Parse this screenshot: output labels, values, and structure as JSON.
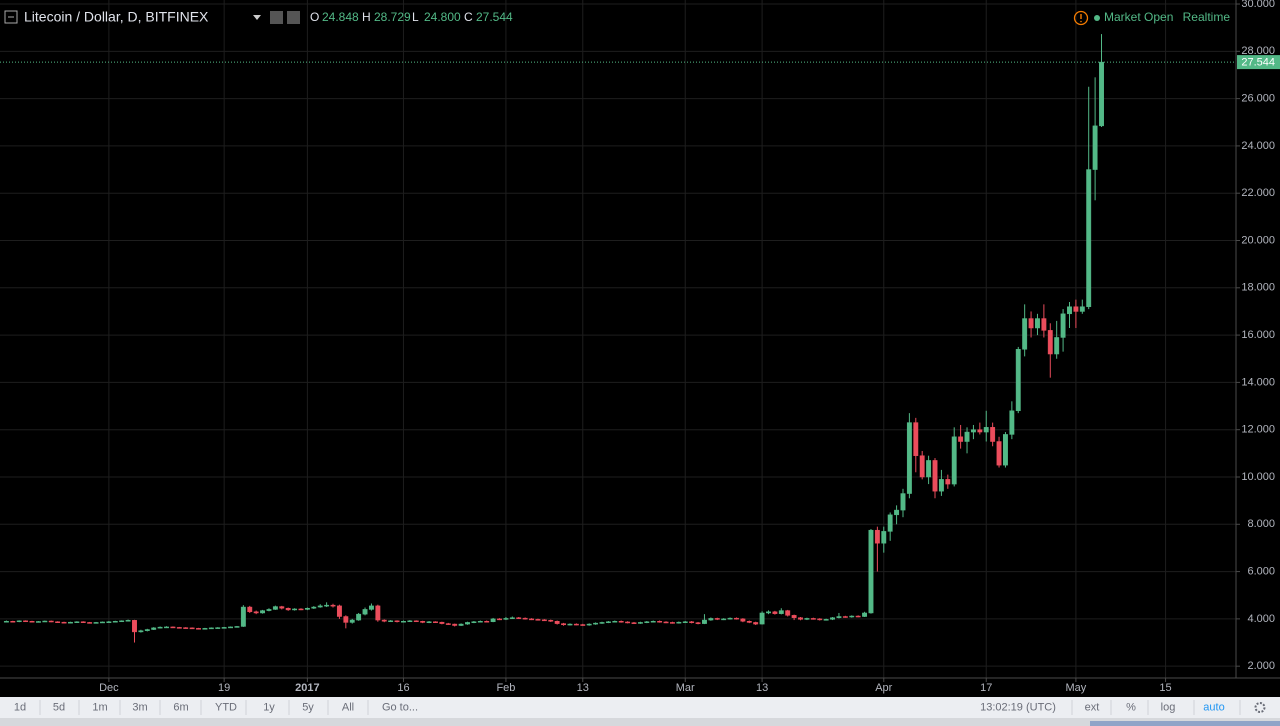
{
  "chart_data": {
    "type": "candlestick",
    "title": "Litecoin / Dollar, D, BITFINEX",
    "ohlc_names": [
      "O",
      "H",
      "L",
      "C"
    ],
    "last_value_labels": [
      "24.848",
      "28.729",
      "24.800",
      "27.544"
    ],
    "status": "Market Open",
    "feed": "Realtime",
    "up_color": "#53b987",
    "down_color": "#eb4d5c",
    "grid": true,
    "xlim": [
      "2016-11-14",
      "2017-05-26"
    ],
    "xticks": [
      {
        "value": "2016-12-01",
        "label": "Dec"
      },
      {
        "value": "2016-12-19",
        "label": "19"
      },
      {
        "value": "2017-01-01",
        "label": "2017"
      },
      {
        "value": "2017-01-16",
        "label": "16"
      },
      {
        "value": "2017-02-01",
        "label": "Feb"
      },
      {
        "value": "2017-02-13",
        "label": "13"
      },
      {
        "value": "2017-03-01",
        "label": "Mar"
      },
      {
        "value": "2017-03-13",
        "label": "13"
      },
      {
        "value": "2017-04-01",
        "label": "Apr"
      },
      {
        "value": "2017-04-17",
        "label": "17"
      },
      {
        "value": "2017-05-01",
        "label": "May"
      },
      {
        "value": "2017-05-15",
        "label": "15"
      }
    ],
    "ylim": [
      1.5,
      30.17
    ],
    "yticks": [
      {
        "value": 2,
        "label": "2.000"
      },
      {
        "value": 4,
        "label": "4.000"
      },
      {
        "value": 6,
        "label": "6.000"
      },
      {
        "value": 8,
        "label": "8.000"
      },
      {
        "value": 10,
        "label": "10.000"
      },
      {
        "value": 12,
        "label": "12.000"
      },
      {
        "value": 14,
        "label": "14.000"
      },
      {
        "value": 16,
        "label": "16.000"
      },
      {
        "value": 18,
        "label": "18.000"
      },
      {
        "value": 20,
        "label": "20.000"
      },
      {
        "value": 22,
        "label": "22.000"
      },
      {
        "value": 24,
        "label": "24.000"
      },
      {
        "value": 26,
        "label": "26.000"
      },
      {
        "value": 28,
        "label": "28.000"
      },
      {
        "value": 30,
        "label": "30.000"
      }
    ],
    "x": [
      "2016-11-15",
      "2016-11-16",
      "2016-11-17",
      "2016-11-18",
      "2016-11-19",
      "2016-11-20",
      "2016-11-21",
      "2016-11-22",
      "2016-11-23",
      "2016-11-24",
      "2016-11-25",
      "2016-11-26",
      "2016-11-27",
      "2016-11-28",
      "2016-11-29",
      "2016-11-30",
      "2016-12-01",
      "2016-12-02",
      "2016-12-03",
      "2016-12-04",
      "2016-12-05",
      "2016-12-06",
      "2016-12-07",
      "2016-12-08",
      "2016-12-09",
      "2016-12-10",
      "2016-12-11",
      "2016-12-12",
      "2016-12-13",
      "2016-12-14",
      "2016-12-15",
      "2016-12-16",
      "2016-12-17",
      "2016-12-18",
      "2016-12-19",
      "2016-12-20",
      "2016-12-21",
      "2016-12-22",
      "2016-12-23",
      "2016-12-24",
      "2016-12-25",
      "2016-12-26",
      "2016-12-27",
      "2016-12-28",
      "2016-12-29",
      "2016-12-30",
      "2016-12-31",
      "2017-01-01",
      "2017-01-02",
      "2017-01-03",
      "2017-01-04",
      "2017-01-05",
      "2017-01-06",
      "2017-01-07",
      "2017-01-08",
      "2017-01-09",
      "2017-01-10",
      "2017-01-11",
      "2017-01-12",
      "2017-01-13",
      "2017-01-14",
      "2017-01-15",
      "2017-01-16",
      "2017-01-17",
      "2017-01-18",
      "2017-01-19",
      "2017-01-20",
      "2017-01-21",
      "2017-01-22",
      "2017-01-23",
      "2017-01-24",
      "2017-01-25",
      "2017-01-26",
      "2017-01-27",
      "2017-01-28",
      "2017-01-29",
      "2017-01-30",
      "2017-01-31",
      "2017-02-01",
      "2017-02-02",
      "2017-02-03",
      "2017-02-04",
      "2017-02-05",
      "2017-02-06",
      "2017-02-07",
      "2017-02-08",
      "2017-02-09",
      "2017-02-10",
      "2017-02-11",
      "2017-02-12",
      "2017-02-13",
      "2017-02-14",
      "2017-02-15",
      "2017-02-16",
      "2017-02-17",
      "2017-02-18",
      "2017-02-19",
      "2017-02-20",
      "2017-02-21",
      "2017-02-22",
      "2017-02-23",
      "2017-02-24",
      "2017-02-25",
      "2017-02-26",
      "2017-02-27",
      "2017-02-28",
      "2017-03-01",
      "2017-03-02",
      "2017-03-03",
      "2017-03-04",
      "2017-03-05",
      "2017-03-06",
      "2017-03-07",
      "2017-03-08",
      "2017-03-09",
      "2017-03-10",
      "2017-03-11",
      "2017-03-12",
      "2017-03-13",
      "2017-03-14",
      "2017-03-15",
      "2017-03-16",
      "2017-03-17",
      "2017-03-18",
      "2017-03-19",
      "2017-03-20",
      "2017-03-21",
      "2017-03-22",
      "2017-03-23",
      "2017-03-24",
      "2017-03-25",
      "2017-03-26",
      "2017-03-27",
      "2017-03-28",
      "2017-03-29",
      "2017-03-30",
      "2017-03-31",
      "2017-04-01",
      "2017-04-02",
      "2017-04-03",
      "2017-04-04",
      "2017-04-05",
      "2017-04-06",
      "2017-04-07",
      "2017-04-08",
      "2017-04-09",
      "2017-04-10",
      "2017-04-11",
      "2017-04-12",
      "2017-04-13",
      "2017-04-14",
      "2017-04-15",
      "2017-04-16",
      "2017-04-17",
      "2017-04-18",
      "2017-04-19",
      "2017-04-20",
      "2017-04-21",
      "2017-04-22",
      "2017-04-23",
      "2017-04-24",
      "2017-04-25",
      "2017-04-26",
      "2017-04-27",
      "2017-04-28",
      "2017-04-29",
      "2017-04-30",
      "2017-05-01",
      "2017-05-02",
      "2017-05-03",
      "2017-05-04",
      "2017-05-05"
    ],
    "ohlc": [
      [
        3.88,
        3.93,
        3.86,
        3.9
      ],
      [
        3.9,
        3.92,
        3.86,
        3.88
      ],
      [
        3.88,
        3.94,
        3.86,
        3.92
      ],
      [
        3.92,
        3.94,
        3.88,
        3.9
      ],
      [
        3.9,
        3.92,
        3.85,
        3.87
      ],
      [
        3.87,
        3.91,
        3.85,
        3.89
      ],
      [
        3.89,
        3.93,
        3.87,
        3.91
      ],
      [
        3.91,
        3.93,
        3.86,
        3.88
      ],
      [
        3.88,
        3.9,
        3.84,
        3.86
      ],
      [
        3.86,
        3.88,
        3.82,
        3.84
      ],
      [
        3.84,
        3.88,
        3.82,
        3.86
      ],
      [
        3.86,
        3.9,
        3.84,
        3.88
      ],
      [
        3.88,
        3.9,
        3.83,
        3.85
      ],
      [
        3.85,
        3.87,
        3.81,
        3.83
      ],
      [
        3.83,
        3.87,
        3.81,
        3.85
      ],
      [
        3.85,
        3.89,
        3.83,
        3.87
      ],
      [
        3.87,
        3.91,
        3.85,
        3.88
      ],
      [
        3.88,
        3.92,
        3.86,
        3.9
      ],
      [
        3.9,
        3.94,
        3.88,
        3.92
      ],
      [
        3.92,
        3.97,
        3.9,
        3.94
      ],
      [
        3.94,
        3.96,
        3.0,
        3.45
      ],
      [
        3.45,
        3.54,
        3.42,
        3.5
      ],
      [
        3.5,
        3.58,
        3.47,
        3.55
      ],
      [
        3.55,
        3.65,
        3.53,
        3.62
      ],
      [
        3.62,
        3.68,
        3.6,
        3.65
      ],
      [
        3.65,
        3.69,
        3.63,
        3.66
      ],
      [
        3.66,
        3.68,
        3.62,
        3.64
      ],
      [
        3.64,
        3.66,
        3.61,
        3.63
      ],
      [
        3.63,
        3.65,
        3.6,
        3.62
      ],
      [
        3.62,
        3.64,
        3.58,
        3.6
      ],
      [
        3.6,
        3.62,
        3.56,
        3.58
      ],
      [
        3.58,
        3.62,
        3.56,
        3.6
      ],
      [
        3.6,
        3.64,
        3.58,
        3.62
      ],
      [
        3.62,
        3.65,
        3.6,
        3.63
      ],
      [
        3.63,
        3.66,
        3.61,
        3.64
      ],
      [
        3.64,
        3.68,
        3.62,
        3.66
      ],
      [
        3.66,
        3.7,
        3.64,
        3.68
      ],
      [
        3.68,
        4.58,
        3.66,
        4.5
      ],
      [
        4.5,
        4.55,
        4.25,
        4.3
      ],
      [
        4.3,
        4.35,
        4.2,
        4.25
      ],
      [
        4.25,
        4.38,
        4.22,
        4.35
      ],
      [
        4.35,
        4.45,
        4.32,
        4.4
      ],
      [
        4.4,
        4.56,
        4.38,
        4.52
      ],
      [
        4.52,
        4.55,
        4.4,
        4.45
      ],
      [
        4.45,
        4.48,
        4.34,
        4.38
      ],
      [
        4.38,
        4.45,
        4.35,
        4.42
      ],
      [
        4.42,
        4.45,
        4.37,
        4.4
      ],
      [
        4.4,
        4.48,
        4.37,
        4.45
      ],
      [
        4.45,
        4.54,
        4.42,
        4.5
      ],
      [
        4.5,
        4.62,
        4.47,
        4.55
      ],
      [
        4.55,
        4.7,
        4.5,
        4.58
      ],
      [
        4.58,
        4.64,
        4.48,
        4.55
      ],
      [
        4.55,
        4.6,
        4.0,
        4.1
      ],
      [
        4.1,
        4.15,
        3.6,
        3.85
      ],
      [
        3.85,
        4.0,
        3.8,
        3.95
      ],
      [
        3.95,
        4.25,
        3.92,
        4.2
      ],
      [
        4.2,
        4.48,
        4.15,
        4.4
      ],
      [
        4.4,
        4.65,
        4.35,
        4.55
      ],
      [
        4.55,
        4.6,
        3.88,
        3.95
      ],
      [
        3.95,
        3.98,
        3.86,
        3.9
      ],
      [
        3.9,
        3.95,
        3.87,
        3.92
      ],
      [
        3.92,
        3.94,
        3.85,
        3.88
      ],
      [
        3.88,
        3.93,
        3.85,
        3.9
      ],
      [
        3.9,
        3.95,
        3.87,
        3.92
      ],
      [
        3.92,
        3.94,
        3.87,
        3.9
      ],
      [
        3.9,
        3.92,
        3.82,
        3.85
      ],
      [
        3.85,
        3.91,
        3.82,
        3.88
      ],
      [
        3.88,
        3.9,
        3.83,
        3.86
      ],
      [
        3.86,
        3.88,
        3.77,
        3.8
      ],
      [
        3.8,
        3.83,
        3.75,
        3.78
      ],
      [
        3.78,
        3.8,
        3.68,
        3.72
      ],
      [
        3.72,
        3.81,
        3.7,
        3.78
      ],
      [
        3.78,
        3.88,
        3.75,
        3.85
      ],
      [
        3.85,
        3.91,
        3.82,
        3.88
      ],
      [
        3.88,
        3.93,
        3.85,
        3.9
      ],
      [
        3.9,
        3.93,
        3.85,
        3.88
      ],
      [
        3.88,
        4.04,
        3.86,
        4.0
      ],
      [
        4.0,
        4.03,
        3.95,
        3.98
      ],
      [
        3.98,
        4.08,
        3.95,
        4.02
      ],
      [
        4.02,
        4.1,
        4.0,
        4.05
      ],
      [
        4.05,
        4.08,
        4.0,
        4.03
      ],
      [
        4.03,
        4.06,
        3.97,
        4.0
      ],
      [
        4.0,
        4.03,
        3.95,
        3.98
      ],
      [
        3.98,
        4.01,
        3.93,
        3.96
      ],
      [
        3.96,
        3.99,
        3.91,
        3.94
      ],
      [
        3.94,
        3.97,
        3.87,
        3.9
      ],
      [
        3.9,
        3.93,
        3.76,
        3.8
      ],
      [
        3.8,
        3.83,
        3.71,
        3.75
      ],
      [
        3.75,
        3.81,
        3.72,
        3.78
      ],
      [
        3.78,
        3.81,
        3.73,
        3.76
      ],
      [
        3.76,
        3.79,
        3.71,
        3.74
      ],
      [
        3.74,
        3.81,
        3.71,
        3.78
      ],
      [
        3.78,
        3.85,
        3.75,
        3.82
      ],
      [
        3.82,
        3.88,
        3.79,
        3.85
      ],
      [
        3.85,
        3.91,
        3.82,
        3.88
      ],
      [
        3.88,
        3.93,
        3.85,
        3.9
      ],
      [
        3.9,
        3.93,
        3.84,
        3.87
      ],
      [
        3.87,
        3.9,
        3.81,
        3.84
      ],
      [
        3.84,
        3.87,
        3.79,
        3.82
      ],
      [
        3.82,
        3.88,
        3.79,
        3.85
      ],
      [
        3.85,
        3.91,
        3.82,
        3.88
      ],
      [
        3.88,
        3.93,
        3.85,
        3.9
      ],
      [
        3.9,
        3.93,
        3.84,
        3.87
      ],
      [
        3.87,
        3.9,
        3.82,
        3.85
      ],
      [
        3.85,
        3.88,
        3.8,
        3.83
      ],
      [
        3.83,
        3.89,
        3.8,
        3.86
      ],
      [
        3.86,
        3.91,
        3.83,
        3.88
      ],
      [
        3.88,
        3.91,
        3.81,
        3.84
      ],
      [
        3.84,
        3.87,
        3.77,
        3.8
      ],
      [
        3.8,
        4.2,
        3.78,
        3.95
      ],
      [
        3.95,
        4.06,
        3.92,
        4.02
      ],
      [
        4.02,
        4.05,
        3.95,
        3.98
      ],
      [
        3.98,
        4.03,
        3.95,
        4.0
      ],
      [
        4.0,
        4.06,
        3.97,
        4.03
      ],
      [
        4.03,
        4.06,
        3.97,
        4.0
      ],
      [
        4.0,
        4.03,
        3.86,
        3.9
      ],
      [
        3.9,
        3.93,
        3.82,
        3.85
      ],
      [
        3.85,
        3.88,
        3.74,
        3.78
      ],
      [
        3.78,
        4.32,
        3.76,
        4.25
      ],
      [
        4.25,
        4.36,
        4.2,
        4.3
      ],
      [
        4.3,
        4.34,
        4.18,
        4.22
      ],
      [
        4.22,
        4.45,
        4.19,
        4.35
      ],
      [
        4.35,
        4.38,
        4.1,
        4.15
      ],
      [
        4.15,
        4.18,
        3.95,
        4.05
      ],
      [
        4.05,
        4.08,
        3.94,
        3.98
      ],
      [
        3.98,
        4.05,
        3.95,
        4.02
      ],
      [
        4.02,
        4.05,
        3.97,
        4.0
      ],
      [
        4.0,
        4.03,
        3.93,
        3.96
      ],
      [
        3.96,
        4.01,
        3.93,
        3.98
      ],
      [
        3.98,
        4.08,
        3.95,
        4.05
      ],
      [
        4.05,
        4.25,
        4.02,
        4.1
      ],
      [
        4.1,
        4.13,
        4.05,
        4.08
      ],
      [
        4.08,
        4.15,
        4.05,
        4.12
      ],
      [
        4.12,
        4.15,
        4.07,
        4.1
      ],
      [
        4.1,
        4.3,
        4.08,
        4.25
      ],
      [
        4.25,
        7.8,
        4.22,
        7.75
      ],
      [
        7.75,
        7.9,
        6.0,
        7.2
      ],
      [
        7.2,
        7.9,
        6.8,
        7.7
      ],
      [
        7.7,
        8.5,
        7.3,
        8.4
      ],
      [
        8.4,
        8.8,
        8.0,
        8.6
      ],
      [
        8.6,
        9.5,
        8.3,
        9.3
      ],
      [
        9.3,
        12.7,
        9.1,
        12.3
      ],
      [
        12.3,
        12.5,
        10.2,
        10.9
      ],
      [
        10.9,
        11.1,
        9.9,
        10.0
      ],
      [
        10.0,
        10.9,
        9.7,
        10.7
      ],
      [
        10.7,
        10.8,
        9.1,
        9.4
      ],
      [
        9.4,
        10.3,
        9.2,
        9.9
      ],
      [
        9.9,
        10.1,
        9.5,
        9.7
      ],
      [
        9.7,
        12.1,
        9.6,
        11.7
      ],
      [
        11.7,
        12.2,
        11.2,
        11.5
      ],
      [
        11.5,
        12.1,
        11.0,
        11.9
      ],
      [
        11.9,
        12.2,
        11.6,
        12.0
      ],
      [
        12.0,
        12.3,
        11.8,
        11.9
      ],
      [
        11.9,
        12.8,
        11.5,
        12.1
      ],
      [
        12.1,
        12.3,
        11.3,
        11.5
      ],
      [
        11.5,
        11.7,
        10.4,
        10.5
      ],
      [
        10.5,
        11.9,
        10.4,
        11.8
      ],
      [
        11.8,
        13.2,
        11.6,
        12.8
      ],
      [
        12.8,
        15.5,
        12.7,
        15.4
      ],
      [
        15.4,
        17.3,
        15.1,
        16.7
      ],
      [
        16.7,
        17.0,
        15.9,
        16.3
      ],
      [
        16.3,
        16.9,
        16.0,
        16.7
      ],
      [
        16.7,
        17.3,
        15.9,
        16.2
      ],
      [
        16.2,
        16.5,
        14.2,
        15.2
      ],
      [
        15.2,
        16.6,
        15.0,
        15.9
      ],
      [
        15.9,
        17.1,
        15.3,
        16.9
      ],
      [
        16.9,
        17.4,
        16.3,
        17.2
      ],
      [
        17.2,
        17.5,
        16.3,
        17.0
      ],
      [
        17.0,
        17.5,
        16.9,
        17.2
      ],
      [
        17.2,
        26.5,
        17.1,
        23.0
      ],
      [
        23.0,
        26.9,
        21.7,
        24.848
      ],
      [
        24.848,
        28.729,
        24.8,
        27.544
      ]
    ]
  },
  "toolbar": {
    "ranges": [
      "1d",
      "5d",
      "1m",
      "3m",
      "6m",
      "YTD",
      "1y",
      "5y",
      "All"
    ],
    "goto": "Go to...",
    "time": "13:02:19 (UTC)",
    "options": [
      "ext",
      "%",
      "log",
      "auto"
    ]
  }
}
